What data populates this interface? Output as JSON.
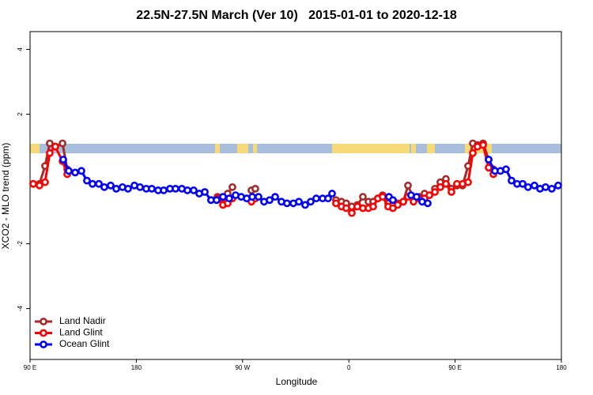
{
  "chart_data": {
    "type": "line",
    "title": "22.5N-27.5N March (Ver 10)   2015-01-01 to 2020-12-18",
    "x_label": "Longitude",
    "y_label": "XCO2 - MLO trend (ppm)",
    "xlim": [
      90,
      540
    ],
    "xticks": [
      {
        "value": 90,
        "label": "90 E"
      },
      180,
      {
        "value": 270,
        "label": "90 W"
      },
      {
        "value": 360,
        "label": "0"
      },
      {
        "value": 450,
        "label": "90 E"
      },
      {
        "value": 540,
        "label": "180"
      }
    ],
    "ylim": [
      -5.57,
      4.55
    ],
    "yticks": [
      -4,
      -2,
      2,
      4
    ],
    "legend": "bottom-left",
    "series": [
      {
        "name": "Land Nadir",
        "color": "#a52a2a",
        "x": [
          92.7,
          98.0,
          102.7,
          106.7,
          111.4,
          117.5,
          121.5,
          180,
          248.7,
          253.4,
          257.4,
          261.4,
          270,
          277.5,
          280.8,
          320,
          349.1,
          353.8,
          357.8,
          362.5,
          367.2,
          371.9,
          376.6,
          380.6,
          384.6,
          388.6,
          393.3,
          397.3,
          401.4,
          406.1,
          410.1,
          414.8,
          419.5,
          424.1,
          428.2,
          432.9,
          437.5,
          442.2,
          446.9,
          451.6,
          456.3,
          461.0,
          465.0,
          469.0,
          473.7,
          478.4,
          482.4
        ],
        "values": [
          -0.15,
          -0.15,
          0.4,
          1.1,
          1.0,
          1.1,
          0.3,
          null,
          -0.55,
          -0.6,
          -0.45,
          -0.25,
          null,
          -0.35,
          -0.3,
          null,
          -0.65,
          -0.7,
          -0.75,
          -0.85,
          -0.8,
          -0.55,
          -0.7,
          -0.7,
          -0.6,
          -0.5,
          -0.75,
          -0.8,
          -0.75,
          -0.7,
          -0.2,
          -0.6,
          -0.55,
          -0.45,
          -0.5,
          -0.3,
          -0.1,
          0,
          -0.3,
          -0.2,
          -0.2,
          0.4,
          1.1,
          1.05,
          1.1,
          0.6,
          0.3
        ]
      },
      {
        "name": "Land Glint",
        "color": "#ff0000",
        "x": [
          92.7,
          98.0,
          102.7,
          106.7,
          111.4,
          117.5,
          121.5,
          180,
          248.7,
          253.4,
          257.4,
          261.4,
          270,
          277.5,
          280.8,
          320,
          349.1,
          353.8,
          357.8,
          362.5,
          367.2,
          371.9,
          376.6,
          380.6,
          384.6,
          388.6,
          393.3,
          397.3,
          401.4,
          406.1,
          410.1,
          414.8,
          419.5,
          424.1,
          428.2,
          432.9,
          437.5,
          442.2,
          446.9,
          451.6,
          456.3,
          461.0,
          465.0,
          469.0,
          473.7,
          478.4,
          482.4
        ],
        "values": [
          -0.15,
          -0.2,
          -0.1,
          0.8,
          1.0,
          0.55,
          0.15,
          null,
          -0.6,
          -0.8,
          -0.75,
          -0.6,
          null,
          -0.7,
          -0.6,
          null,
          -0.75,
          -0.85,
          -0.9,
          -1.05,
          -0.85,
          -0.9,
          -0.9,
          -0.85,
          -0.6,
          -0.55,
          -0.85,
          -0.9,
          -0.8,
          -0.7,
          -0.55,
          -0.7,
          -0.6,
          -0.6,
          -0.5,
          -0.4,
          -0.25,
          -0.15,
          -0.4,
          -0.15,
          -0.15,
          -0.1,
          0.8,
          1.0,
          1.05,
          0.35,
          0.15
        ]
      },
      {
        "name": "Ocean Glint",
        "color": "#0000ff",
        "x": [
          118.1,
          122.8,
          128.2,
          133.5,
          138.2,
          142.9,
          148.3,
          152.9,
          158.3,
          163.0,
          168.3,
          173.0,
          178.4,
          183.1,
          188.4,
          193.1,
          198.5,
          203.2,
          208.5,
          213.2,
          218.6,
          223.3,
          228.6,
          233.3,
          238.0,
          243.3,
          248.0,
          253.4,
          258.7,
          264.1,
          268.8,
          273.5,
          278.2,
          283.5,
          288.2,
          292.9,
          297.6,
          302.9,
          307.6,
          313.0,
          317.7,
          323.0,
          327.7,
          332.4,
          337.8,
          342.4,
          345.8,
          370,
          394.0,
          397.3,
          400,
          412.7,
          417.4,
          422.1,
          426.8,
          450,
          478.4,
          483.7,
          488.4,
          493.1,
          497.8,
          502.5,
          507.2,
          511.8,
          517.2,
          521.9,
          526.6,
          531.9,
          537.3
        ],
        "values": [
          0.6,
          0.25,
          0.2,
          0.25,
          -0.05,
          -0.15,
          -0.15,
          -0.25,
          -0.2,
          -0.3,
          -0.25,
          -0.3,
          -0.2,
          -0.25,
          -0.3,
          -0.3,
          -0.35,
          -0.35,
          -0.3,
          -0.3,
          -0.3,
          -0.35,
          -0.35,
          -0.45,
          -0.4,
          -0.65,
          -0.65,
          -0.55,
          -0.6,
          -0.5,
          -0.55,
          -0.6,
          -0.55,
          -0.55,
          -0.7,
          -0.65,
          -0.55,
          -0.7,
          -0.75,
          -0.75,
          -0.7,
          -0.8,
          -0.7,
          -0.6,
          -0.6,
          -0.6,
          -0.45,
          null,
          -0.55,
          -0.65,
          null,
          -0.5,
          -0.55,
          -0.7,
          -0.75,
          null,
          0.6,
          0.25,
          0.25,
          0.3,
          -0.05,
          -0.15,
          -0.15,
          -0.25,
          -0.2,
          -0.3,
          -0.25,
          -0.3,
          -0.2
        ]
      }
    ]
  }
}
